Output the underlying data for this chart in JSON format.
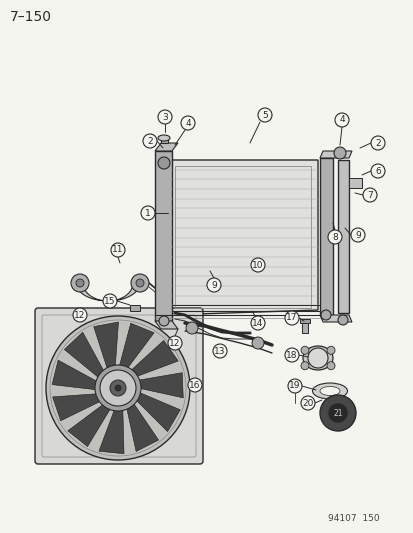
{
  "title": "7–150",
  "footer": "94107  150",
  "bg": "#f5f5f0",
  "lc": "#2a2a2a",
  "fig_width": 4.14,
  "fig_height": 5.33,
  "dpi": 100
}
